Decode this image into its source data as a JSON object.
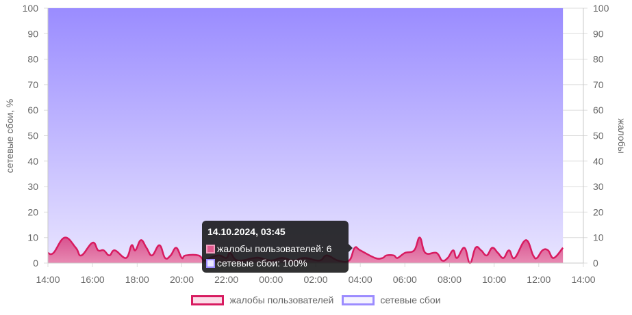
{
  "chart_data": {
    "type": "area",
    "xlabel": "",
    "ylabel_left": "сетевые сбои, %",
    "ylabel_right": "жалобы",
    "ylim_left": [
      0,
      100
    ],
    "ylim_right": [
      0,
      100
    ],
    "yticks": [
      "0",
      "10",
      "20",
      "30",
      "40",
      "50",
      "60",
      "70",
      "80",
      "90",
      "100"
    ],
    "xticks": [
      "14:00",
      "16:00",
      "18:00",
      "20:00",
      "22:00",
      "00:00",
      "02:00",
      "04:00",
      "06:00",
      "08:00",
      "10:00",
      "12:00",
      "14:00"
    ],
    "grid": true,
    "legend_position": "bottom",
    "x": [
      "14:00",
      "14:15",
      "14:45",
      "15:15",
      "15:30",
      "16:00",
      "16:15",
      "16:30",
      "16:45",
      "17:00",
      "17:30",
      "17:45",
      "17:55",
      "18:10",
      "18:25",
      "18:40",
      "19:00",
      "19:15",
      "19:30",
      "19:45",
      "20:00",
      "20:10",
      "20:45",
      "21:00",
      "21:15",
      "21:40",
      "22:00",
      "22:10",
      "22:30",
      "23:15",
      "23:30",
      "00:00",
      "00:30",
      "01:00",
      "01:30",
      "02:10",
      "02:30",
      "03:00",
      "03:30",
      "03:45",
      "04:00",
      "04:40",
      "05:00",
      "05:10",
      "05:30",
      "05:40",
      "06:00",
      "06:25",
      "06:40",
      "06:55",
      "07:25",
      "07:40",
      "07:55",
      "08:10",
      "08:20",
      "08:40",
      "08:55",
      "09:10",
      "09:25",
      "09:40",
      "09:55",
      "10:10",
      "10:25",
      "10:40",
      "10:55",
      "11:25",
      "11:45",
      "11:55",
      "12:10",
      "12:25",
      "12:40",
      "13:05"
    ],
    "series": [
      {
        "name": "жалобы пользователей",
        "axis": "right",
        "color": "#d81b60",
        "values": [
          4,
          4,
          10,
          6,
          3,
          8,
          5,
          5,
          3,
          5,
          2,
          7,
          5,
          9,
          6,
          3,
          7,
          2,
          3,
          6,
          2,
          3,
          3,
          1,
          2,
          3,
          2,
          4,
          1,
          2,
          2,
          1,
          2,
          1,
          2,
          1,
          3,
          1,
          1,
          6,
          5,
          2,
          2,
          3,
          3,
          2,
          4,
          5,
          10,
          4,
          4,
          1,
          2,
          5,
          2,
          6,
          0,
          6,
          5,
          3,
          6,
          4,
          2,
          5,
          2,
          9,
          3,
          2,
          5,
          5,
          2,
          6
        ]
      },
      {
        "name": "сетевые сбои",
        "axis": "left",
        "color": "#9c8cff",
        "unit": "%",
        "values": [
          100,
          100,
          100,
          100,
          100,
          100,
          100,
          100,
          100,
          100,
          100,
          100,
          100,
          100,
          100,
          100,
          100,
          100,
          100,
          100,
          100,
          100,
          100,
          100,
          100,
          100,
          100,
          100,
          100,
          100,
          100,
          100,
          100,
          100,
          100,
          100,
          100,
          100,
          100,
          100,
          100,
          100,
          100,
          100,
          100,
          100,
          100,
          100,
          100,
          100,
          100,
          100,
          100,
          100,
          100,
          100,
          100,
          100,
          100,
          100,
          100,
          100,
          100,
          100,
          100,
          100,
          100,
          100,
          100,
          100,
          100,
          100
        ]
      }
    ]
  },
  "tooltip": {
    "title": "14.10.2024, 03:45",
    "row1": "жалобы пользователей: 6",
    "row2": "сетевые сбои: 100%"
  },
  "legend": {
    "item1": "жалобы пользователей",
    "item2": "сетевые сбои"
  }
}
